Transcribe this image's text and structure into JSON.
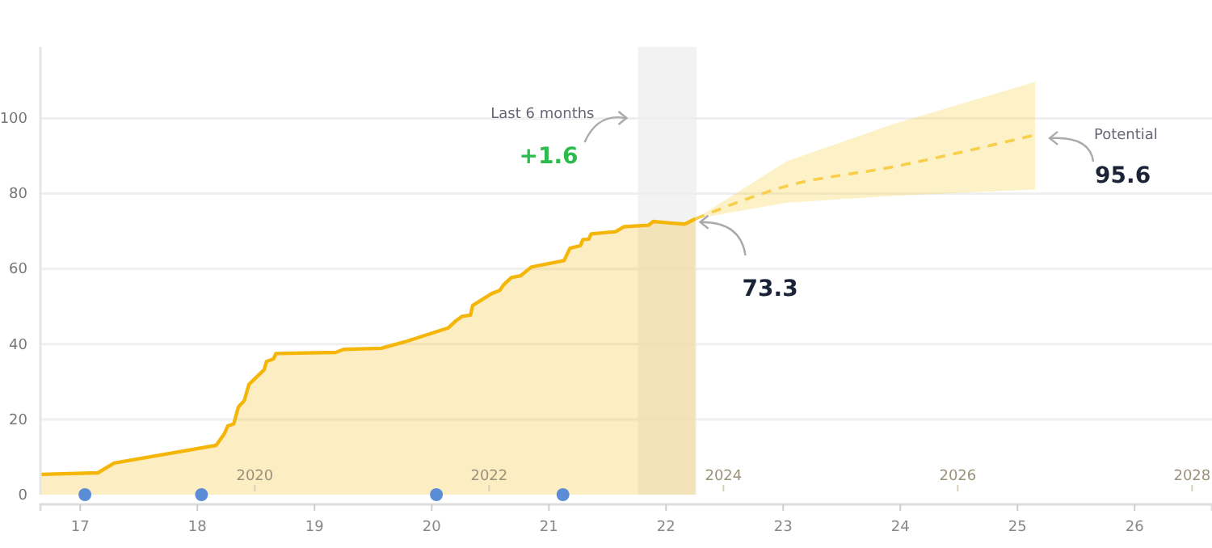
{
  "chart_data": {
    "type": "area",
    "xlim": [
      2018.17,
      2028.17
    ],
    "xticks": [
      2020,
      2022,
      2024,
      2026,
      2028
    ],
    "x2lim": [
      16.66,
      26.66
    ],
    "x2ticks": [
      17,
      18,
      19,
      20,
      21,
      22,
      23,
      24,
      25,
      26
    ],
    "ylim": [
      0,
      119
    ],
    "yticks": [
      0,
      20,
      40,
      60,
      80,
      100
    ],
    "grid": "y",
    "bands": [
      {
        "axis": "x",
        "from": 2023.27,
        "to": 2023.77,
        "color": "#eeeeee"
      }
    ],
    "annotations": [
      "Last 6 months",
      "+1.6",
      {
        "text": "73.3",
        "x": 2023.76,
        "y": 73.3
      },
      "Potential",
      {
        "text": "95.6",
        "x": 2026.66,
        "y": 95.6
      }
    ],
    "series": [
      {
        "color": "#f5b60a",
        "x": [
          2018.18,
          2018.66,
          2018.8,
          2019.67,
          2019.74,
          2019.77,
          2019.82,
          2019.86,
          2019.91,
          2019.95,
          2020.08,
          2020.1,
          2020.16,
          2020.18,
          2020.69,
          2020.76,
          2021.08,
          2021.28,
          2021.65,
          2021.72,
          2021.77,
          2021.84,
          2021.86,
          2022.02,
          2022.09,
          2022.13,
          2022.19,
          2022.27,
          2022.36,
          2022.64,
          2022.69,
          2022.78,
          2022.8,
          2022.85,
          2022.87,
          2023.08,
          2023.15,
          2023.36,
          2023.4,
          2023.54,
          2023.67,
          2023.76
        ],
        "values": [
          5.4,
          5.8,
          8.4,
          13.1,
          16.2,
          18.3,
          18.8,
          23.3,
          25,
          29.3,
          33.2,
          35.4,
          36.1,
          37.5,
          37.8,
          38.6,
          38.9,
          40.6,
          44.3,
          46.3,
          47.4,
          47.7,
          50.3,
          53.4,
          54.3,
          56,
          57.7,
          58.2,
          60.5,
          62.2,
          65.5,
          66.2,
          67.8,
          67.9,
          69.3,
          69.9,
          71.2,
          71.6,
          72.6,
          72.2,
          71.9,
          73.3
        ]
      },
      {
        "type": "line",
        "line_style": "dashed",
        "color": "#f7cf4a",
        "x": [
          2023.76,
          2024.54,
          2025.46,
          2026.66
        ],
        "values": [
          73.3,
          82,
          87.2,
          95.6
        ],
        "lower": [
          73.3,
          77.6,
          79.4,
          81.1
        ],
        "upper": [
          73.3,
          88.6,
          98.6,
          109.7
        ]
      },
      {
        "type": "scatter",
        "marker": "circle",
        "color": "#5a8dd6",
        "x": [
          2018.55,
          2019.545,
          2021.55,
          2022.63
        ],
        "values": [
          0,
          0,
          0,
          0
        ]
      }
    ]
  }
}
